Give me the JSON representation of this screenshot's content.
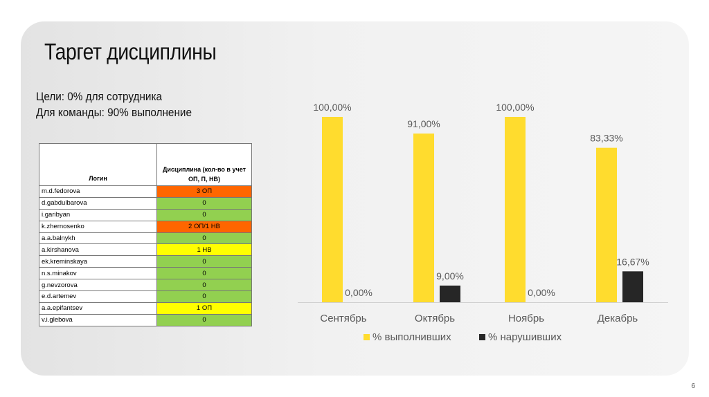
{
  "slide": {
    "title": "Таргет дисциплины",
    "goal_line1": "Цели: 0% для сотрудника",
    "goal_line2": "Для команды: 90% выполнение",
    "page_number": "6"
  },
  "colors": {
    "orange": "#ff6600",
    "green": "#92d050",
    "yellow": "#ffff00",
    "bar_yellow": "#ffdc2e",
    "bar_dark": "#262626"
  },
  "table": {
    "headers": [
      "Логин",
      "Дисциплина (кол-во в учет ОП, П, НВ)"
    ],
    "rows": [
      {
        "login": "m.d.fedorova",
        "value": "3 ОП",
        "status": "orange"
      },
      {
        "login": "d.gabdulbarova",
        "value": "0",
        "status": "green"
      },
      {
        "login": "i.garibyan",
        "value": "0",
        "status": "green"
      },
      {
        "login": "k.zhernosenko",
        "value": "2 ОП/1 НВ",
        "status": "orange"
      },
      {
        "login": "a.a.balnykh",
        "value": "0",
        "status": "green"
      },
      {
        "login": "a.kirshanova",
        "value": "1 НВ",
        "status": "yellow"
      },
      {
        "login": "ek.kreminskaya",
        "value": "0",
        "status": "green"
      },
      {
        "login": "n.s.minakov",
        "value": "0",
        "status": "green"
      },
      {
        "login": "g.nevzorova",
        "value": "0",
        "status": "green"
      },
      {
        "login": "e.d.artemev",
        "value": "0",
        "status": "green"
      },
      {
        "login": "a.a.epifantsev",
        "value": "1 ОП",
        "status": "yellow"
      },
      {
        "login": "v.i.glebova",
        "value": "0",
        "status": "green"
      }
    ]
  },
  "chart_data": {
    "type": "bar",
    "categories": [
      "Сентябрь",
      "Октябрь",
      "Ноябрь",
      "Декабрь"
    ],
    "series": [
      {
        "name": "% выполнивших",
        "values": [
          100.0,
          91.0,
          100.0,
          83.33
        ],
        "labels": [
          "100,00%",
          "91,00%",
          "100,00%",
          "83,33%"
        ],
        "color": "#ffdc2e"
      },
      {
        "name": "% нарушивших",
        "values": [
          0.0,
          9.0,
          0.0,
          16.67
        ],
        "labels": [
          "0,00%",
          "9,00%",
          "0,00%",
          "16,67%"
        ],
        "color": "#262626"
      }
    ],
    "ylim": [
      0,
      100
    ],
    "grid": false,
    "legend": "bottom"
  }
}
